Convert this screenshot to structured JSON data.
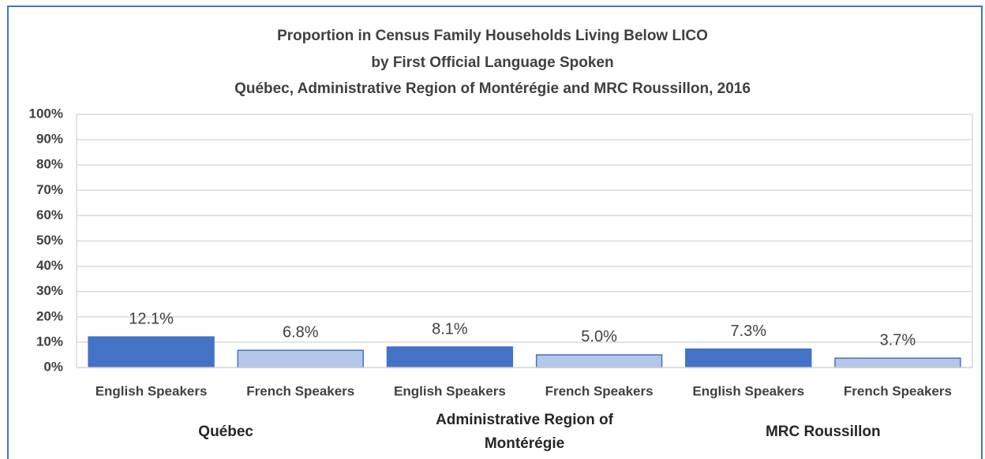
{
  "chart_data": {
    "type": "bar",
    "title": [
      "Proportion in Census Family Households Living Below LICO",
      "by First Official Language Spoken",
      "Québec, Administrative Region of Montérégie and MRC Roussillon, 2016"
    ],
    "categories": [
      "English Speakers",
      "French Speakers",
      "English Speakers",
      "French Speakers",
      "English Speakers",
      "French Speakers"
    ],
    "groups": [
      "Québec",
      "Administrative Region of Montérégie",
      "MRC Roussillon"
    ],
    "values": [
      12.1,
      6.8,
      8.1,
      5.0,
      7.3,
      3.7
    ],
    "value_labels": [
      "12.1%",
      "6.8%",
      "8.1%",
      "5.0%",
      "7.3%",
      "3.7%"
    ],
    "colors": [
      "#4472c4",
      "#b4c7e7",
      "#4472c4",
      "#b4c7e7",
      "#4472c4",
      "#b4c7e7"
    ],
    "ylim": [
      0,
      100
    ],
    "yticks": [
      {
        "value": 0,
        "label": "0%"
      },
      {
        "value": 10,
        "label": "10%"
      },
      {
        "value": 20,
        "label": "20%"
      },
      {
        "value": 30,
        "label": "30%"
      },
      {
        "value": 40,
        "label": "40%"
      },
      {
        "value": 50,
        "label": "50%"
      },
      {
        "value": 60,
        "label": "60%"
      },
      {
        "value": 70,
        "label": "70%"
      },
      {
        "value": 80,
        "label": "80%"
      },
      {
        "value": 90,
        "label": "90%"
      },
      {
        "value": 100,
        "label": "100%"
      }
    ],
    "grid": true
  }
}
